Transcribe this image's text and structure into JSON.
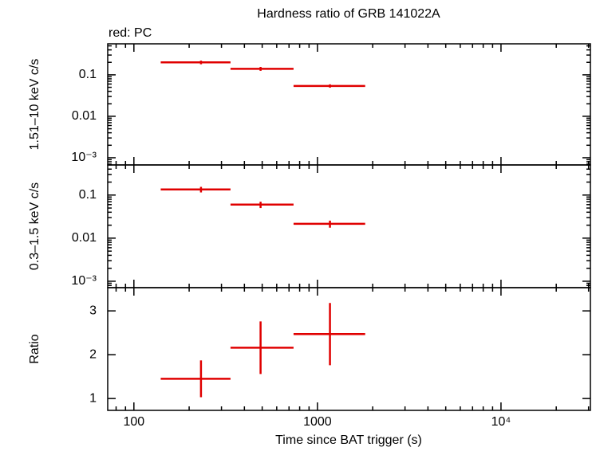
{
  "chart_data": [
    {
      "type": "errorbar",
      "title": "Hardness ratio of GRB 141022A",
      "subtitle": "red: PC",
      "ylabel": "1.51–10 keV c/s",
      "log_x": true,
      "log_y": true,
      "xlim": [
        72,
        30700
      ],
      "ylim": [
        0.00067,
        0.56
      ],
      "yticks": [
        0.1,
        0.01,
        {
          "value": 0.001,
          "label": "10⁻³"
        }
      ],
      "color": "#e00000",
      "x": [
        232,
        490,
        1170
      ],
      "x_lo": [
        140,
        336,
        741
      ],
      "x_hi": [
        336,
        741,
        1820
      ],
      "values": [
        0.2,
        0.14,
        0.054
      ],
      "yerr": [
        0.02,
        0.015,
        0.005
      ]
    },
    {
      "type": "errorbar",
      "ylabel": "0.3–1.5 keV c/s",
      "log_x": true,
      "log_y": true,
      "xlim": [
        72,
        30700
      ],
      "ylim": [
        0.00071,
        0.5
      ],
      "yticks": [
        0.1,
        0.01,
        {
          "value": 0.001,
          "label": "10⁻³"
        }
      ],
      "color": "#e00000",
      "x": [
        232,
        490,
        1170
      ],
      "x_lo": [
        140,
        336,
        741
      ],
      "x_hi": [
        336,
        741,
        1820
      ],
      "values": [
        0.135,
        0.06,
        0.0215
      ],
      "yerr": [
        0.02,
        0.01,
        0.004
      ]
    },
    {
      "type": "errorbar",
      "ylabel": "Ratio",
      "xlabel": "Time since BAT trigger (s)",
      "log_x": true,
      "log_y": false,
      "xlim": [
        72,
        30700
      ],
      "ylim": [
        0.73,
        3.53
      ],
      "xticks": [
        100,
        1000,
        {
          "value": 10000,
          "label": "10⁴"
        }
      ],
      "yticks": [
        1,
        2,
        3
      ],
      "color": "#e00000",
      "x": [
        232,
        490,
        1170
      ],
      "x_lo": [
        140,
        336,
        741
      ],
      "x_hi": [
        336,
        741,
        1820
      ],
      "values": [
        1.45,
        2.16,
        2.47
      ],
      "yerr": [
        0.42,
        0.6,
        0.71
      ]
    }
  ]
}
